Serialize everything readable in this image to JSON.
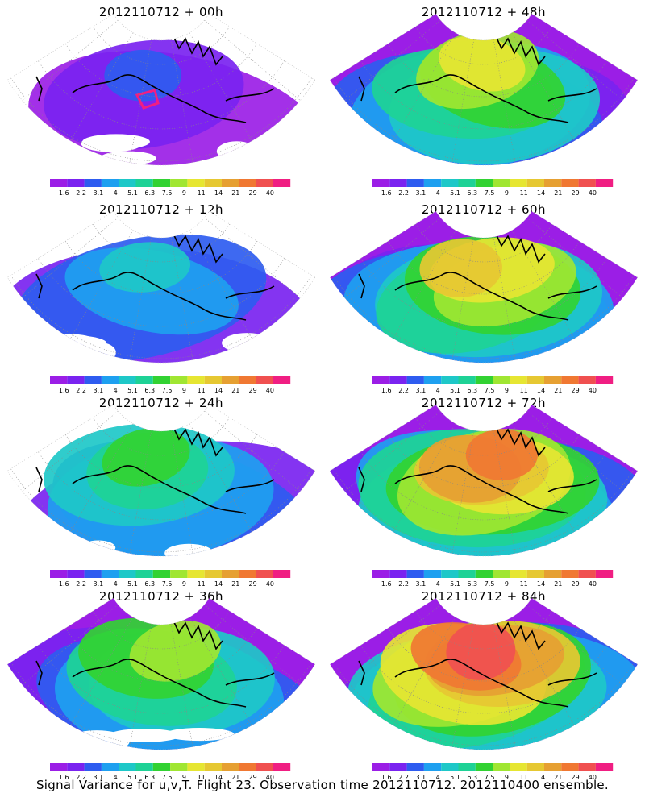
{
  "panels": [
    {
      "title": "2012110712 + 00h",
      "lead_hours": 0
    },
    {
      "title": "2012110712 + 48h",
      "lead_hours": 48
    },
    {
      "title": "2012110712 + 12h",
      "lead_hours": 12
    },
    {
      "title": "2012110712 + 60h",
      "lead_hours": 60
    },
    {
      "title": "2012110712 + 24h",
      "lead_hours": 24
    },
    {
      "title": "2012110712 + 72h",
      "lead_hours": 72
    },
    {
      "title": "2012110712 + 36h",
      "lead_hours": 36
    },
    {
      "title": "2012110712 + 84h",
      "lead_hours": 84
    }
  ],
  "colorbar": {
    "labels": [
      "1.6",
      "2.2",
      "3.1",
      "4",
      "5.1",
      "6.3",
      "7.5",
      "9",
      "11",
      "14",
      "21",
      "29",
      "40"
    ],
    "colors": [
      "#9b1ee6",
      "#7a23f0",
      "#2e5cf0",
      "#1ea0f0",
      "#1ec8c8",
      "#1ed296",
      "#32d232",
      "#a0e632",
      "#e6e632",
      "#e6c832",
      "#e6a032",
      "#f07832",
      "#f05050",
      "#f01e82"
    ]
  },
  "caption": "Signal Variance for u,v,T. Flight 23. Observation time 2012110712. 2012110400 ensemble."
}
